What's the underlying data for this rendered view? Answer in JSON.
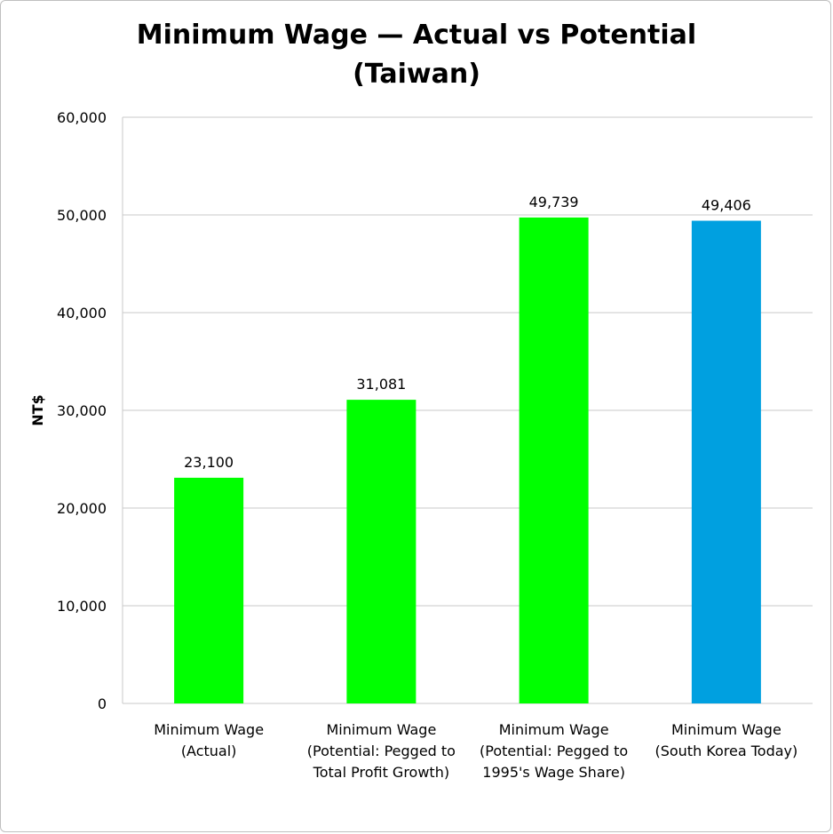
{
  "chart_data": {
    "type": "bar",
    "title_lines": [
      "Minimum Wage — Actual vs Potential",
      "(Taiwan)"
    ],
    "ylabel": "NT$",
    "xlabel": "",
    "ylim": [
      0,
      60000
    ],
    "yticks": [
      0,
      10000,
      20000,
      30000,
      40000,
      50000,
      60000
    ],
    "ytick_labels": [
      "0",
      "10,000",
      "20,000",
      "30,000",
      "40,000",
      "50,000",
      "60,000"
    ],
    "grid": true,
    "legend": "none",
    "categories": [
      [
        "Minimum Wage",
        "(Actual)"
      ],
      [
        "Minimum Wage",
        "(Potential: Pegged to",
        "Total Profit Growth)"
      ],
      [
        "Minimum Wage",
        "(Potential: Pegged to",
        "1995's Wage Share)"
      ],
      [
        "Minimum Wage",
        "(South Korea Today)"
      ]
    ],
    "values": [
      23100,
      31081,
      49739,
      49406
    ],
    "data_labels": [
      "23,100",
      "31,081",
      "49,739",
      "49,406"
    ],
    "colors": [
      "#00ff00",
      "#00ff00",
      "#00ff00",
      "#00a0e0"
    ]
  }
}
